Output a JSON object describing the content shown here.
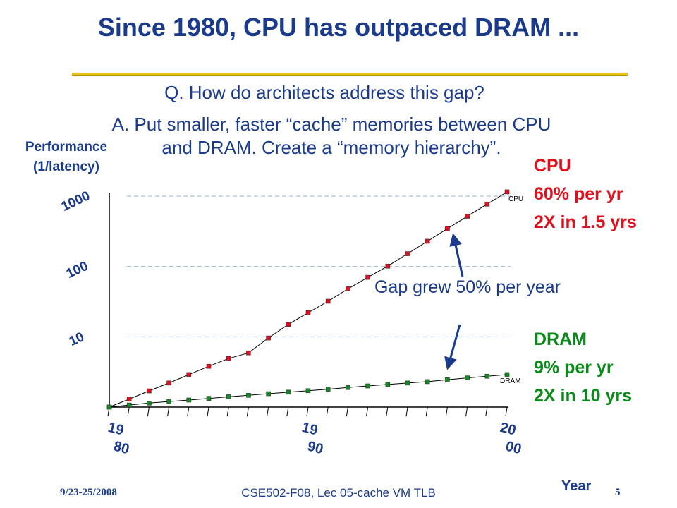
{
  "slide": {
    "title": "Since 1980, CPU has outpaced DRAM ...",
    "question": "Q. How do architects address this gap?",
    "answer": "A. Put smaller, faster “cache” memories between CPU and DRAM.  Create a “memory hierarchy”.",
    "gap_note": "Gap grew 50% per year",
    "cpu_side": {
      "name": "CPU",
      "rate": "60% per yr",
      "doubling": "2X in 1.5 yrs",
      "color": "#e0101c"
    },
    "dram_side": {
      "name": "DRAM",
      "rate": "9% per yr",
      "doubling": "2X in 10 yrs",
      "color": "#0a8a1a"
    },
    "footer": {
      "date": "9/23-25/2008",
      "course": "CSE502-F08, Lec 05-cache VM TLB",
      "page": "5"
    },
    "text_color": "#1a3a8c"
  },
  "chart_data": {
    "type": "line",
    "ylabel_line1": "Performance",
    "ylabel_line2": "(1/latency)",
    "xlabel": "Year",
    "y_scale": "log",
    "y_ticks": [
      "10",
      "100",
      "1000"
    ],
    "x_ticks": [
      {
        "line1": "19",
        "line2": "80"
      },
      {
        "line1": "19",
        "line2": "90"
      },
      {
        "line1": "20",
        "line2": "00"
      }
    ],
    "xlim": [
      1980,
      2000
    ],
    "ylim": [
      1,
      1000
    ],
    "grid": "dashed horizontal at 10, 100, 1000",
    "series": [
      {
        "name": "CPU",
        "color": "#e01020",
        "x": [
          1980,
          1981,
          1982,
          1983,
          1984,
          1985,
          1986,
          1987,
          1988,
          1989,
          1990,
          1991,
          1992,
          1993,
          1994,
          1995,
          1996,
          1997,
          1998,
          1999,
          2000
        ],
        "values": [
          1,
          1.3,
          1.7,
          2.2,
          2.9,
          3.8,
          4.9,
          5.9,
          9.6,
          15,
          22,
          32,
          48,
          70,
          101,
          152,
          228,
          345,
          517,
          770,
          1150
        ]
      },
      {
        "name": "DRAM",
        "color": "#148a24",
        "x": [
          1980,
          1981,
          1982,
          1983,
          1984,
          1985,
          1986,
          1987,
          1988,
          1989,
          1990,
          1991,
          1992,
          1993,
          1994,
          1995,
          1996,
          1997,
          1998,
          1999,
          2000
        ],
        "values": [
          1,
          1.07,
          1.14,
          1.2,
          1.26,
          1.33,
          1.4,
          1.47,
          1.55,
          1.63,
          1.71,
          1.8,
          1.9,
          2.0,
          2.1,
          2.2,
          2.3,
          2.45,
          2.6,
          2.75,
          2.9
        ]
      }
    ]
  }
}
